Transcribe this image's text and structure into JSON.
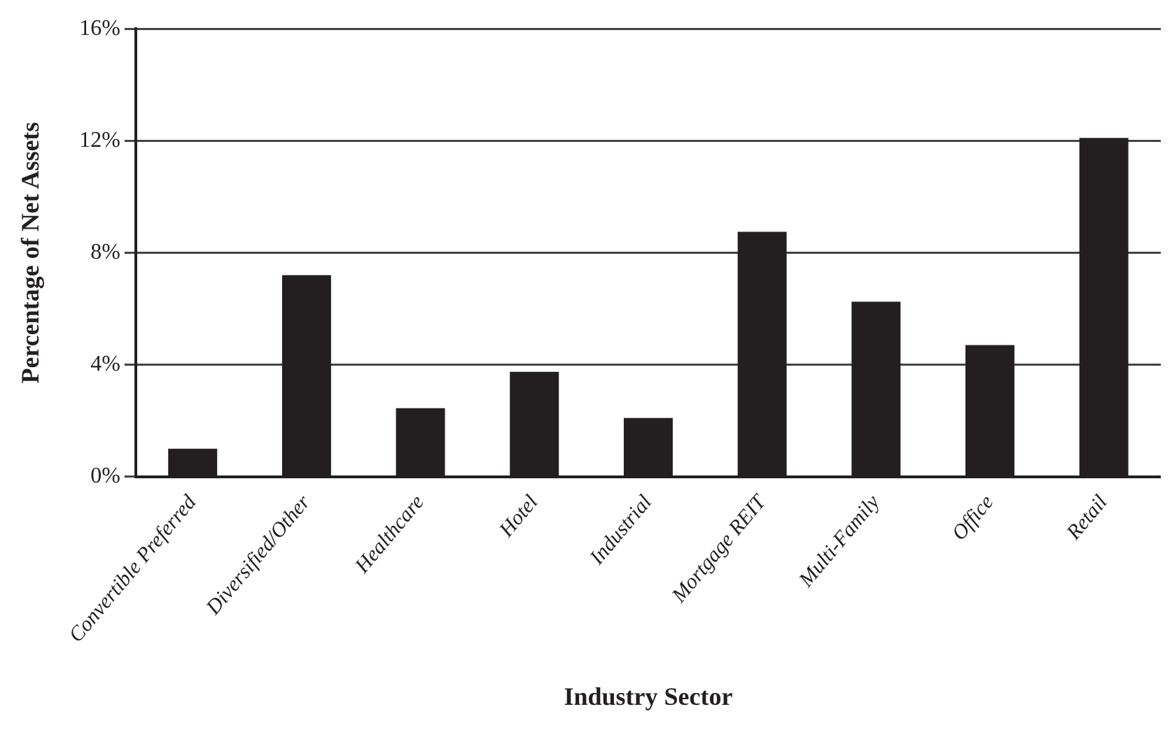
{
  "chart_data": {
    "type": "bar",
    "xlabel": "Industry Sector",
    "ylabel": "Percentage of Net Assets",
    "categories": [
      "Convertible Preferred",
      "Diversified/Other",
      "Healthcare",
      "Hotel",
      "Industrial",
      "Mortgage REIT",
      "Multi-Family",
      "Office",
      "Retail"
    ],
    "values": [
      1.0,
      7.2,
      2.45,
      3.75,
      2.1,
      8.75,
      6.25,
      4.7,
      12.1
    ],
    "color": "#231f20",
    "ylim": [
      0,
      16
    ],
    "yticks": [
      {
        "value": 0,
        "label": "0%"
      },
      {
        "value": 4,
        "label": "4%"
      },
      {
        "value": 8,
        "label": "8%"
      },
      {
        "value": 12,
        "label": "12%"
      },
      {
        "value": 16,
        "label": "16%"
      }
    ],
    "grid": "y",
    "legend": false
  }
}
